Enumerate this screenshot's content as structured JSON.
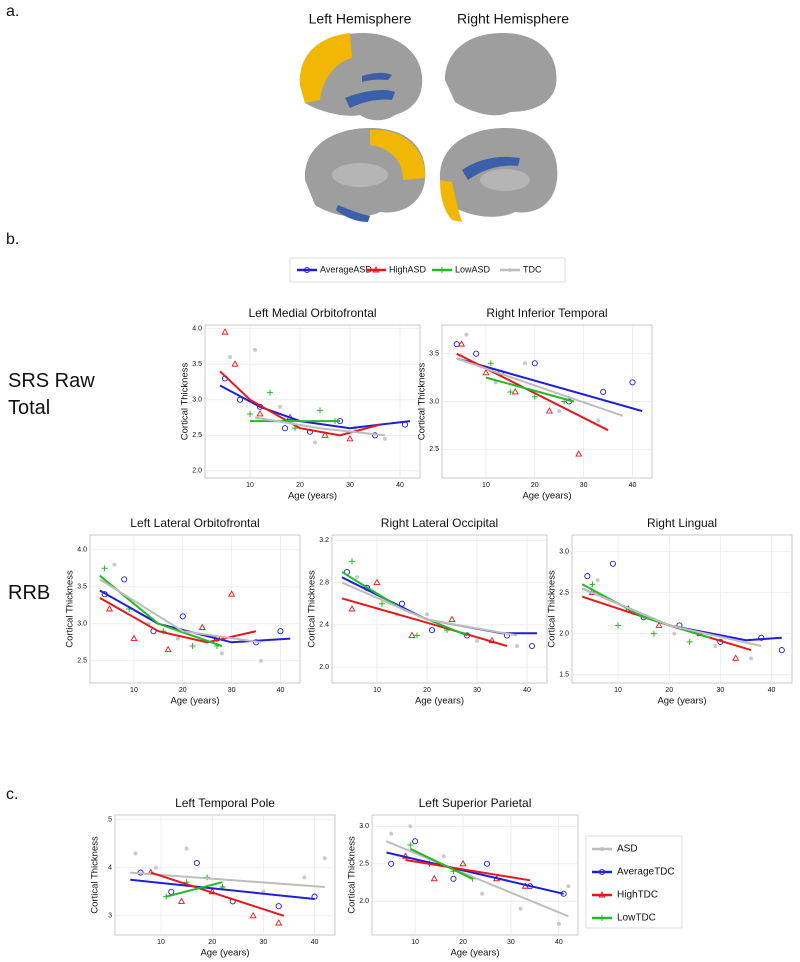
{
  "panel_labels": [
    "a.",
    "b.",
    "c."
  ],
  "hemispheres": [
    "Left Hemisphere",
    "Right Hemisphere"
  ],
  "row_labels": [
    "SRS Raw Total",
    "RRB"
  ],
  "legend_b": [
    {
      "name": "AverageASD",
      "color": "#1f1fd6",
      "marker": "circle"
    },
    {
      "name": "HighASD",
      "color": "#e31a1c",
      "marker": "triangle"
    },
    {
      "name": "LowASD",
      "color": "#22bb22",
      "marker": "plus"
    },
    {
      "name": "TDC",
      "color": "#bdbdbd",
      "marker": "dot"
    }
  ],
  "legend_c": [
    {
      "name": "ASD",
      "color": "#bdbdbd",
      "marker": "dot"
    },
    {
      "name": "AverageTDC",
      "color": "#1f1fd6",
      "marker": "circle"
    },
    {
      "name": "HighTDC",
      "color": "#e31a1c",
      "marker": "triangle"
    },
    {
      "name": "LowTDC",
      "color": "#22bb22",
      "marker": "plus"
    }
  ],
  "chart_data": [
    {
      "type": "scatter",
      "title": "Left Medial Orbitofrontal",
      "x_label": "Age (years)",
      "y_label": "Cortical Thickness",
      "xlim": [
        1,
        44
      ],
      "ylim": [
        1.9,
        4.05
      ],
      "xticks": [
        10,
        20,
        30,
        40
      ],
      "yticks": [
        {
          "value": 2,
          "label": "2.0"
        },
        2.5,
        {
          "value": 3,
          "label": "3.0"
        },
        3.5,
        {
          "value": 4,
          "label": "4.0"
        }
      ],
      "grid": true,
      "series": [
        {
          "x": [
            5,
            8,
            12,
            17,
            22,
            28,
            35,
            41
          ],
          "values": [
            3.3,
            3.0,
            2.9,
            2.6,
            2.55,
            2.7,
            2.5,
            2.65
          ],
          "fit_x": [
            4,
            12,
            20,
            30,
            42
          ],
          "fit_values": [
            3.2,
            2.9,
            2.7,
            2.6,
            2.7
          ]
        },
        {
          "x": [
            5,
            7,
            12,
            18,
            25,
            30
          ],
          "values": [
            3.95,
            3.5,
            2.8,
            2.75,
            2.5,
            2.45
          ],
          "fit_x": [
            4,
            10,
            20,
            28,
            36
          ],
          "fit_values": [
            3.4,
            3.0,
            2.6,
            2.5,
            2.65
          ]
        },
        {
          "x": [
            10,
            14,
            19,
            24,
            27
          ],
          "values": [
            2.8,
            3.1,
            2.6,
            2.85,
            2.7
          ],
          "fit_x": [
            10,
            28
          ],
          "fit_values": [
            2.7,
            2.7
          ]
        },
        {
          "x": [
            6,
            11,
            16,
            23,
            31,
            37
          ],
          "values": [
            3.6,
            3.7,
            2.9,
            2.4,
            2.6,
            2.45
          ],
          "fit_x": [
            11,
            24,
            37
          ],
          "fit_values": [
            2.75,
            2.6,
            2.5
          ]
        }
      ]
    },
    {
      "type": "scatter",
      "title": "Right Inferior Temporal",
      "x_label": "Age (years)",
      "y_label": "Cortical Thickness",
      "xlim": [
        1,
        44
      ],
      "ylim": [
        2.2,
        3.8
      ],
      "xticks": [
        10,
        20,
        30,
        40
      ],
      "yticks": [
        2.5,
        {
          "value": 3,
          "label": "3.0"
        },
        3.5
      ],
      "grid": true,
      "series": [
        {
          "x": [
            4,
            8,
            13,
            20,
            27,
            34,
            40
          ],
          "values": [
            3.6,
            3.5,
            3.3,
            3.4,
            3.0,
            3.1,
            3.2
          ],
          "fit_x": [
            4,
            42
          ],
          "fit_values": [
            3.45,
            2.9
          ]
        },
        {
          "x": [
            5,
            10,
            16,
            23,
            29
          ],
          "values": [
            3.6,
            3.3,
            3.1,
            2.9,
            2.45
          ],
          "fit_x": [
            4,
            35
          ],
          "fit_values": [
            3.5,
            2.7
          ]
        },
        {
          "x": [
            11,
            15,
            20,
            26
          ],
          "values": [
            3.4,
            3.1,
            3.05,
            3.0
          ],
          "fit_x": [
            10,
            28
          ],
          "fit_values": [
            3.25,
            3.0
          ]
        },
        {
          "x": [
            6,
            12,
            18,
            25,
            33
          ],
          "values": [
            3.7,
            3.2,
            3.4,
            2.9,
            2.8
          ],
          "fit_x": [
            4,
            38
          ],
          "fit_values": [
            3.45,
            2.85
          ]
        }
      ]
    },
    {
      "type": "scatter",
      "title": "Left Lateral Orbitofrontal",
      "x_label": "Age (years)",
      "y_label": "Cortical Thickness",
      "xlim": [
        1,
        44
      ],
      "ylim": [
        2.2,
        4.2
      ],
      "xticks": [
        10,
        20,
        30,
        40
      ],
      "yticks": [
        2.5,
        {
          "value": 3,
          "label": "3.0"
        },
        3.5,
        {
          "value": 4,
          "label": "4.0"
        }
      ],
      "grid": true,
      "series": [
        {
          "x": [
            4,
            8,
            14,
            20,
            27,
            35,
            40
          ],
          "values": [
            3.4,
            3.6,
            2.9,
            3.1,
            2.8,
            2.75,
            2.9
          ],
          "fit_x": [
            3,
            15,
            30,
            42
          ],
          "fit_values": [
            3.45,
            3.0,
            2.75,
            2.8
          ]
        },
        {
          "x": [
            5,
            10,
            17,
            24,
            30
          ],
          "values": [
            3.2,
            2.8,
            2.65,
            2.95,
            3.4
          ],
          "fit_x": [
            3,
            15,
            25,
            35
          ],
          "fit_values": [
            3.35,
            2.9,
            2.75,
            2.9
          ]
        },
        {
          "x": [
            4,
            9,
            16,
            22,
            27
          ],
          "values": [
            3.75,
            3.2,
            2.9,
            2.7,
            2.7
          ],
          "fit_x": [
            3,
            15,
            28
          ],
          "fit_values": [
            3.65,
            3.0,
            2.7
          ]
        },
        {
          "x": [
            6,
            13,
            19,
            28,
            36
          ],
          "values": [
            3.8,
            3.0,
            2.8,
            2.6,
            2.5
          ],
          "fit_x": [
            3,
            20,
            36
          ],
          "fit_values": [
            3.6,
            2.9,
            2.75
          ]
        }
      ]
    },
    {
      "type": "scatter",
      "title": "Right Lateral Occipital",
      "x_label": "Age (years)",
      "y_label": "Cortical Thickness",
      "xlim": [
        1,
        44
      ],
      "ylim": [
        1.85,
        3.25
      ],
      "xticks": [
        10,
        20,
        30,
        40
      ],
      "yticks": [
        {
          "value": 2,
          "label": "2.0"
        },
        2.4,
        2.8,
        3.2
      ],
      "grid": true,
      "series": [
        {
          "x": [
            4,
            8,
            15,
            21,
            28,
            36,
            41
          ],
          "values": [
            2.9,
            2.75,
            2.6,
            2.35,
            2.3,
            2.3,
            2.2
          ],
          "fit_x": [
            3,
            20,
            35,
            42
          ],
          "fit_values": [
            2.85,
            2.45,
            2.32,
            2.32
          ]
        },
        {
          "x": [
            5,
            10,
            17,
            25,
            33
          ],
          "values": [
            2.55,
            2.8,
            2.3,
            2.45,
            2.25
          ],
          "fit_x": [
            3,
            20,
            36
          ],
          "fit_values": [
            2.65,
            2.42,
            2.2
          ]
        },
        {
          "x": [
            5,
            11,
            18,
            24
          ],
          "values": [
            3.0,
            2.6,
            2.3,
            2.35
          ],
          "fit_x": [
            3,
            15,
            28
          ],
          "fit_values": [
            2.9,
            2.55,
            2.3
          ]
        },
        {
          "x": [
            6,
            14,
            20,
            30,
            38
          ],
          "values": [
            2.85,
            2.5,
            2.5,
            2.25,
            2.2
          ],
          "fit_x": [
            3,
            20,
            38
          ],
          "fit_values": [
            2.8,
            2.45,
            2.3
          ]
        }
      ]
    },
    {
      "type": "scatter",
      "title": "Right Lingual",
      "x_label": "Age (years)",
      "y_label": "Cortical Thickness",
      "xlim": [
        1,
        44
      ],
      "ylim": [
        1.4,
        3.2
      ],
      "xticks": [
        10,
        20,
        30,
        40
      ],
      "yticks": [
        1.5,
        {
          "value": 2,
          "label": "2.0"
        },
        2.5,
        {
          "value": 3,
          "label": "3.0"
        }
      ],
      "grid": true,
      "series": [
        {
          "x": [
            4,
            9,
            15,
            22,
            30,
            38,
            42
          ],
          "values": [
            2.7,
            2.85,
            2.2,
            2.1,
            1.9,
            1.95,
            1.8
          ],
          "fit_x": [
            3,
            20,
            35,
            42
          ],
          "fit_values": [
            2.55,
            2.1,
            1.92,
            1.95
          ]
        },
        {
          "x": [
            5,
            12,
            18,
            26,
            33
          ],
          "values": [
            2.5,
            2.3,
            2.1,
            2.0,
            1.7
          ],
          "fit_x": [
            3,
            20,
            36
          ],
          "fit_values": [
            2.45,
            2.1,
            1.8
          ]
        },
        {
          "x": [
            5,
            10,
            17,
            24
          ],
          "values": [
            2.6,
            2.1,
            2.0,
            1.9
          ],
          "fit_x": [
            3,
            15,
            28
          ],
          "fit_values": [
            2.6,
            2.2,
            1.95
          ]
        },
        {
          "x": [
            6,
            13,
            21,
            29,
            36
          ],
          "values": [
            2.65,
            2.25,
            2.0,
            1.85,
            1.7
          ],
          "fit_x": [
            3,
            20,
            38
          ],
          "fit_values": [
            2.55,
            2.1,
            1.85
          ]
        }
      ]
    },
    {
      "type": "scatter",
      "title": "Left Temporal Pole",
      "x_label": "Age (years)",
      "y_label": "Cortical Thickness",
      "xlim": [
        1,
        44
      ],
      "ylim": [
        2.6,
        5.1
      ],
      "xticks": [
        10,
        20,
        30,
        40
      ],
      "yticks": [
        3,
        4,
        5
      ],
      "grid": true,
      "series": [
        {
          "x": [
            5,
            9,
            15,
            22,
            30,
            38,
            42
          ],
          "values": [
            4.3,
            4.0,
            4.4,
            3.6,
            3.5,
            3.8,
            4.2
          ],
          "fit_x": [
            4,
            42
          ],
          "fit_values": [
            3.9,
            3.6
          ]
        },
        {
          "x": [
            6,
            12,
            17,
            24,
            33,
            40
          ],
          "values": [
            3.9,
            3.5,
            4.1,
            3.3,
            3.2,
            3.4
          ],
          "fit_x": [
            4,
            40
          ],
          "fit_values": [
            3.75,
            3.35
          ]
        },
        {
          "x": [
            8,
            14,
            20,
            28,
            33
          ],
          "values": [
            3.9,
            3.3,
            3.5,
            3.0,
            2.85
          ],
          "fit_x": [
            8,
            34
          ],
          "fit_values": [
            3.9,
            3.0
          ]
        },
        {
          "x": [
            11,
            15,
            19,
            22
          ],
          "values": [
            3.4,
            3.7,
            3.8,
            3.6
          ],
          "fit_x": [
            11,
            22
          ],
          "fit_values": [
            3.4,
            3.7
          ]
        }
      ]
    },
    {
      "type": "scatter",
      "title": "Left Superior Parietal",
      "x_label": "Age (years)",
      "y_label": "Cortical Thickness",
      "xlim": [
        1,
        44
      ],
      "ylim": [
        1.55,
        3.15
      ],
      "xticks": [
        10,
        20,
        30,
        40
      ],
      "yticks": [
        {
          "value": 2,
          "label": "2.0"
        },
        2.5,
        {
          "value": 3,
          "label": "3.0"
        }
      ],
      "grid": true,
      "series": [
        {
          "x": [
            5,
            9,
            16,
            24,
            32,
            40,
            42
          ],
          "values": [
            2.9,
            3.0,
            2.6,
            2.1,
            1.9,
            1.7,
            2.2
          ],
          "fit_x": [
            4,
            42
          ],
          "fit_values": [
            2.8,
            1.8
          ]
        },
        {
          "x": [
            5,
            10,
            18,
            25,
            34,
            41
          ],
          "values": [
            2.5,
            2.8,
            2.3,
            2.5,
            2.2,
            2.1
          ],
          "fit_x": [
            4,
            41
          ],
          "fit_values": [
            2.65,
            2.1
          ]
        },
        {
          "x": [
            8,
            14,
            20,
            27,
            33
          ],
          "values": [
            2.6,
            2.3,
            2.5,
            2.3,
            2.2
          ],
          "fit_x": [
            8,
            34
          ],
          "fit_values": [
            2.55,
            2.28
          ]
        },
        {
          "x": [
            9,
            13,
            18,
            22
          ],
          "values": [
            2.75,
            2.5,
            2.4,
            2.3
          ],
          "fit_x": [
            9,
            22
          ],
          "fit_values": [
            2.7,
            2.3
          ]
        }
      ]
    }
  ]
}
